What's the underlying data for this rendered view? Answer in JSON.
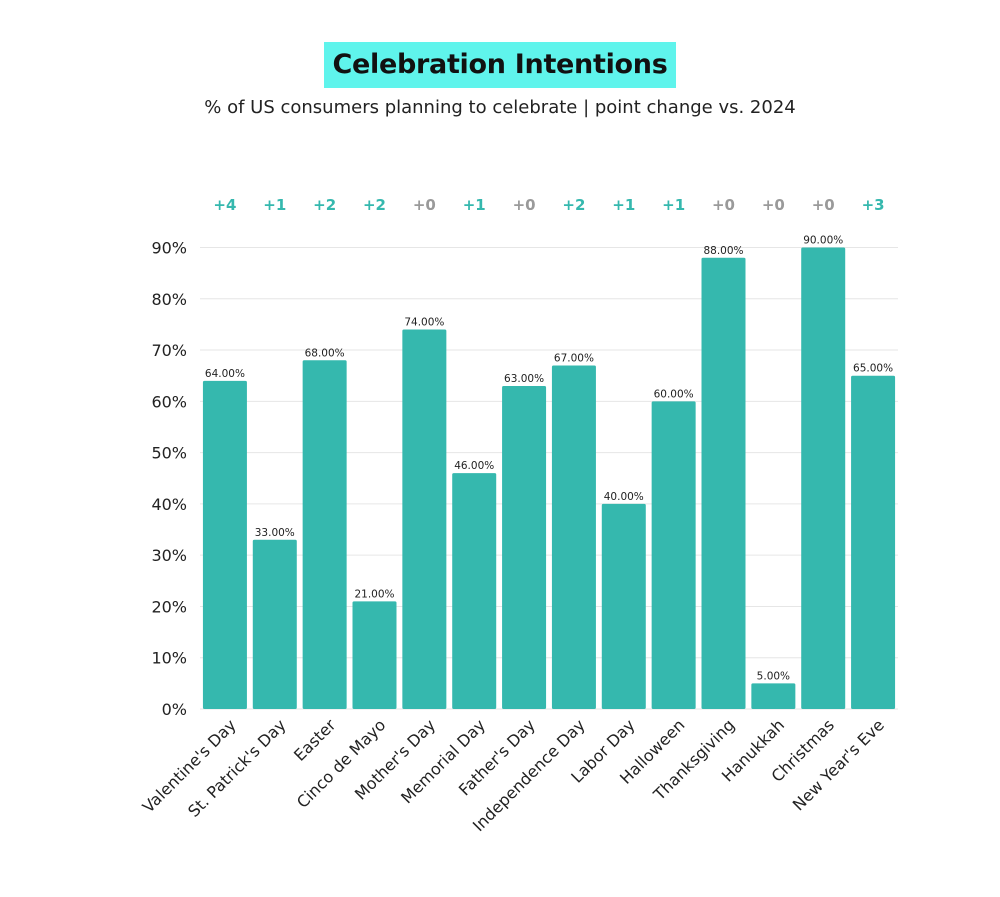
{
  "chart_data": {
    "type": "bar",
    "title": "Celebration Intentions",
    "subtitle": "% of US consumers planning to celebrate | point change vs. 2024",
    "categories": [
      "Valentine's Day",
      "St. Patrick's Day",
      "Easter",
      "Cinco de Mayo",
      "Mother's Day",
      "Memorial Day",
      "Father's Day",
      "Independence Day",
      "Labor Day",
      "Halloween",
      "Thanksgiving",
      "Hanukkah",
      "Christmas",
      "New Year's Eve"
    ],
    "values": [
      64,
      33,
      68,
      21,
      74,
      46,
      63,
      67,
      40,
      60,
      88,
      5,
      90,
      65
    ],
    "value_labels": [
      "64.00%",
      "33.00%",
      "68.00%",
      "21.00%",
      "74.00%",
      "46.00%",
      "63.00%",
      "67.00%",
      "40.00%",
      "60.00%",
      "88.00%",
      "5.00%",
      "90.00%",
      "65.00%"
    ],
    "point_change": [
      "+4",
      "+1",
      "+2",
      "+2",
      "+0",
      "+1",
      "+0",
      "+2",
      "+1",
      "+1",
      "+0",
      "+0",
      "+0",
      "+3"
    ],
    "yticks": [
      "0%",
      "10%",
      "20%",
      "30%",
      "40%",
      "50%",
      "60%",
      "70%",
      "80%",
      "90%"
    ],
    "ylim": [
      0,
      90
    ],
    "xlabel": "",
    "ylabel": "",
    "grid": true,
    "colors": {
      "bar": "#35b8ae",
      "title_highlight": "#5ff4ec",
      "change_positive": "#35b8ae",
      "change_zero": "#9a9a9a",
      "grid": "#e6e6e6"
    }
  }
}
